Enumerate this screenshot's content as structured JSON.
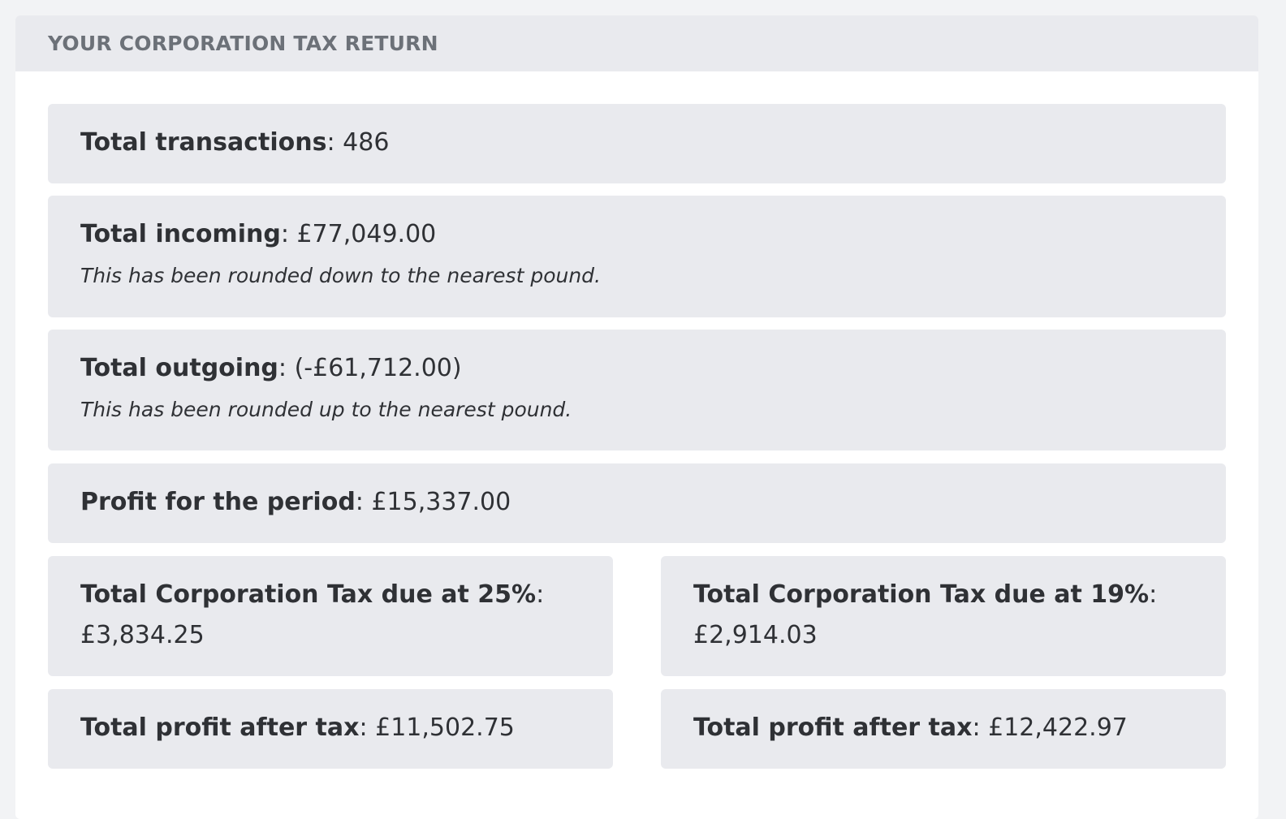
{
  "panel": {
    "title": "YOUR CORPORATION TAX RETURN"
  },
  "summary": {
    "transactions": {
      "label": "Total transactions",
      "sep": ": ",
      "value": "486"
    },
    "incoming": {
      "label": "Total incoming",
      "sep": ": ",
      "value": "£77,049.00",
      "note": "This has been rounded down to the nearest pound."
    },
    "outgoing": {
      "label": "Total outgoing",
      "sep": ": ",
      "value": "(-£61,712.00)",
      "note": "This has been rounded up to the nearest pound."
    },
    "profit": {
      "label": "Profit for the period",
      "sep": ": ",
      "value": "£15,337.00"
    }
  },
  "rates": {
    "high": {
      "tax_label": "Total Corporation Tax due at 25%",
      "tax_sep": ":",
      "tax_value": "£3,834.25",
      "after_label": "Total profit after tax",
      "after_sep": ": ",
      "after_value": "£11,502.75"
    },
    "low": {
      "tax_label": "Total Corporation Tax due at 19%",
      "tax_sep": ":",
      "tax_value": "£2,914.03",
      "after_label": "Total profit after tax",
      "after_sep": ": ",
      "after_value": "£12,422.97"
    }
  }
}
